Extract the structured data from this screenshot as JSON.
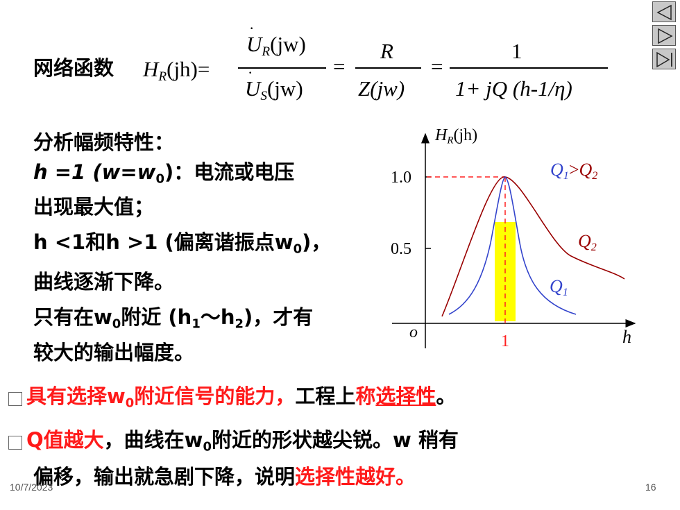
{
  "nav": {
    "prev_label": "previous-slide",
    "next_label": "next-slide",
    "end_label": "last-slide"
  },
  "formula": {
    "label": "网络函数",
    "lhs": "H",
    "lhs_sub": "R",
    "lhs_arg": "(jh)=",
    "f1_num": "U",
    "f1_num_sub": "R",
    "f1_num_arg": "(jw)",
    "f1_den": "U",
    "f1_den_sub": "S",
    "f1_den_arg": "(jw)",
    "eq1": "=",
    "f2_num": "R",
    "f2_den": "Z(jw)",
    "eq2": "=",
    "f3_num": "1",
    "f3_den": "1+ jQ (h-1/η)"
  },
  "text": {
    "l1": "分析幅频特性：",
    "l2a": "h =1 (w=w",
    "l2sub": "0",
    "l2b": ")：电流或电压",
    "l3": "出现最大值；",
    "l4a": "h <1和h >1 (偏离谐振点w",
    "l4sub": "0",
    "l4b": ")，",
    "l5": "曲线逐渐下降。",
    "l6a": "只有在w",
    "l6sub": "0",
    "l6b": "附近 (h",
    "l6sub1": "1",
    "l6c": "～h",
    "l6sub2": "2",
    "l6d": ")，才有",
    "l7": "较大的输出幅度。"
  },
  "bullets": {
    "b1_red_a": "具有选择w",
    "b1_sub": "0",
    "b1_red_b": "附近信号的能力，",
    "b1_black": "工程上",
    "b1_red_c": "称",
    "b1_red_u": "选择性",
    "b1_end": "。",
    "b2_red": "Q值越大",
    "b2_black_a": "，曲线在w",
    "b2_sub": "0",
    "b2_black_b": "附近的形状越尖锐。w 稍有",
    "b3_black": "偏移，输出就急剧下降，说明",
    "b3_red": "选择性越好。"
  },
  "chart": {
    "y_label": "H",
    "y_label_sub": "R",
    "y_label_arg": "(jh)",
    "x_label": "h",
    "origin": "o",
    "tick_10": "1.0",
    "tick_05": "0.5",
    "tick_1": "1",
    "legend_q1": "Q",
    "legend_q1_sub": "1",
    "legend_gt": ">",
    "legend_q2": "Q",
    "legend_q2_sub": "2",
    "q2_label": "Q",
    "q2_label_sub": "2",
    "q1_label": "Q",
    "q1_label_sub": "1",
    "colors": {
      "q1": "#3344cc",
      "q2": "#990000",
      "band": "#ffff00",
      "dash": "#ff2020"
    }
  },
  "footer": {
    "date": "10/7/2023",
    "page": "16"
  }
}
